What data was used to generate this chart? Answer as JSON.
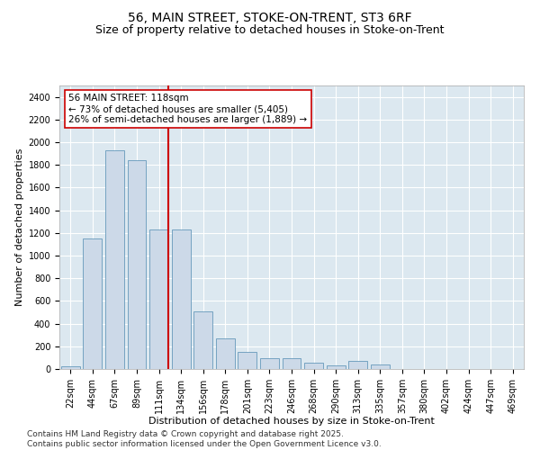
{
  "title1": "56, MAIN STREET, STOKE-ON-TRENT, ST3 6RF",
  "title2": "Size of property relative to detached houses in Stoke-on-Trent",
  "xlabel": "Distribution of detached houses by size in Stoke-on-Trent",
  "ylabel": "Number of detached properties",
  "categories": [
    "22sqm",
    "44sqm",
    "67sqm",
    "89sqm",
    "111sqm",
    "134sqm",
    "156sqm",
    "178sqm",
    "201sqm",
    "223sqm",
    "246sqm",
    "268sqm",
    "290sqm",
    "313sqm",
    "335sqm",
    "357sqm",
    "380sqm",
    "402sqm",
    "424sqm",
    "447sqm",
    "469sqm"
  ],
  "values": [
    20,
    1150,
    1930,
    1840,
    1230,
    1230,
    510,
    270,
    150,
    95,
    95,
    55,
    35,
    70,
    40,
    0,
    0,
    0,
    0,
    0,
    0
  ],
  "bar_color": "#ccd9e8",
  "bar_edge_color": "#6699bb",
  "vline_color": "#cc0000",
  "annotation_line1": "56 MAIN STREET: 118sqm",
  "annotation_line2": "← 73% of detached houses are smaller (5,405)",
  "annotation_line3": "26% of semi-detached houses are larger (1,889) →",
  "annotation_box_color": "white",
  "annotation_edge_color": "#cc0000",
  "ylim": [
    0,
    2500
  ],
  "yticks": [
    0,
    200,
    400,
    600,
    800,
    1000,
    1200,
    1400,
    1600,
    1800,
    2000,
    2200,
    2400
  ],
  "bg_color": "#dce8f0",
  "grid_color": "white",
  "footnote": "Contains HM Land Registry data © Crown copyright and database right 2025.\nContains public sector information licensed under the Open Government Licence v3.0.",
  "title_fontsize": 10,
  "subtitle_fontsize": 9,
  "axis_label_fontsize": 8,
  "tick_fontsize": 7,
  "annotation_fontsize": 7.5,
  "footnote_fontsize": 6.5
}
